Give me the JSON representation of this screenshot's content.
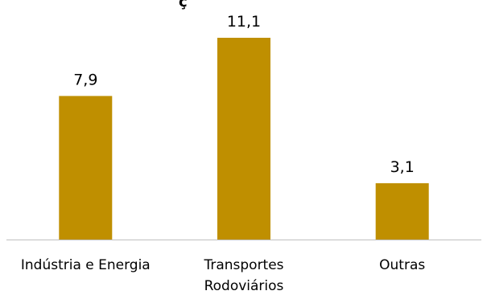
{
  "chart_data": {
    "type": "bar",
    "categories": [
      [
        "Indústria e Energia"
      ],
      [
        "Transportes",
        "Rodoviários"
      ],
      [
        "Outras"
      ]
    ],
    "values": [
      7.9,
      11.1,
      3.1
    ],
    "data_labels": [
      "7,9",
      "11,1",
      "3,1"
    ],
    "title_visible_fragment": "ç",
    "ylim": [
      0,
      11.1
    ],
    "grid": false,
    "colors": {
      "bar": "#BF8F00",
      "axis": "#BFBFBF",
      "text": "#000000"
    }
  }
}
